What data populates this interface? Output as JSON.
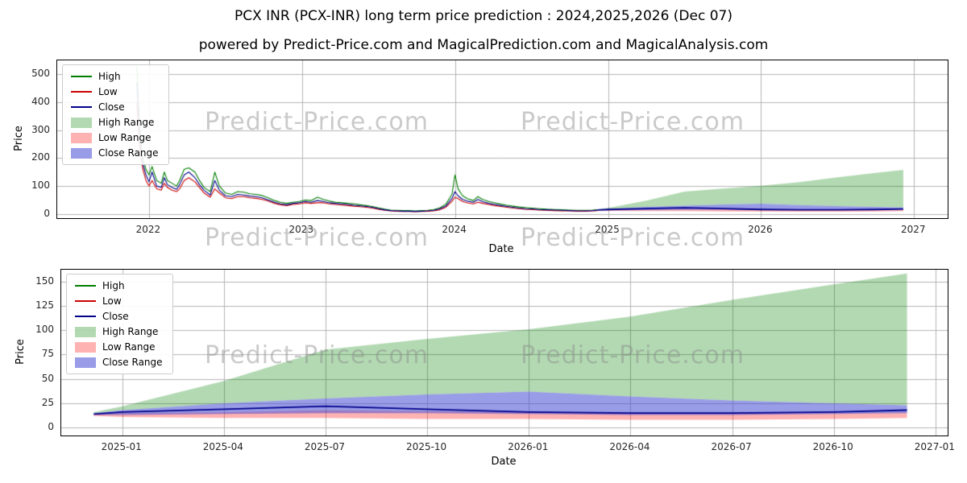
{
  "title": "PCX INR (PCX-INR) long term price prediction : 2024,2025,2026 (Dec 07)",
  "subtitle": "powered by Predict-Price.com and MagicalPrediction.com and MagicalAnalysis.com",
  "watermark": "Predict-Price.com",
  "colors": {
    "high": "#007f00",
    "low": "#cc0000",
    "close": "#00008b",
    "high_range": "rgba(0,128,0,0.30)",
    "low_range": "rgba(255,0,0,0.30)",
    "close_range": "rgba(70,75,210,0.55)",
    "grid": "#b4b4b4",
    "spine": "#000000"
  },
  "legend": [
    {
      "label": "High",
      "type": "line",
      "color": "high"
    },
    {
      "label": "Low",
      "type": "line",
      "color": "low"
    },
    {
      "label": "Close",
      "type": "line",
      "color": "close"
    },
    {
      "label": "High Range",
      "type": "patch",
      "color": "high_range"
    },
    {
      "label": "Low Range",
      "type": "patch",
      "color": "low_range"
    },
    {
      "label": "Close Range",
      "type": "patch",
      "color": "close_range"
    }
  ],
  "historical": {
    "x": [
      2021.92,
      2021.94,
      2021.96,
      2021.98,
      2022.0,
      2022.02,
      2022.05,
      2022.08,
      2022.1,
      2022.12,
      2022.15,
      2022.18,
      2022.2,
      2022.23,
      2022.26,
      2022.3,
      2022.33,
      2022.36,
      2022.4,
      2022.43,
      2022.46,
      2022.5,
      2022.54,
      2022.58,
      2022.62,
      2022.66,
      2022.7,
      2022.74,
      2022.78,
      2022.82,
      2022.86,
      2022.9,
      2022.94,
      2022.98,
      2023.02,
      2023.06,
      2023.1,
      2023.14,
      2023.18,
      2023.22,
      2023.26,
      2023.3,
      2023.34,
      2023.38,
      2023.42,
      2023.46,
      2023.5,
      2023.54,
      2023.58,
      2023.62,
      2023.66,
      2023.7,
      2023.74,
      2023.78,
      2023.82,
      2023.86,
      2023.9,
      2023.94,
      2023.98,
      2024.0,
      2024.02,
      2024.05,
      2024.08,
      2024.12,
      2024.15,
      2024.18,
      2024.22,
      2024.26,
      2024.3,
      2024.34,
      2024.38,
      2024.42,
      2024.46,
      2024.5,
      2024.55,
      2024.6,
      2024.65,
      2024.7,
      2024.75,
      2024.8,
      2024.85,
      2024.9,
      2024.93
    ],
    "high": [
      530,
      300,
      200,
      160,
      140,
      170,
      120,
      110,
      150,
      120,
      110,
      100,
      120,
      160,
      165,
      150,
      120,
      95,
      80,
      150,
      100,
      75,
      70,
      80,
      78,
      72,
      70,
      66,
      58,
      48,
      42,
      38,
      42,
      44,
      50,
      48,
      60,
      52,
      46,
      42,
      40,
      38,
      36,
      33,
      30,
      27,
      22,
      17,
      14,
      13,
      12,
      12,
      11,
      12,
      13,
      15,
      22,
      35,
      70,
      140,
      90,
      65,
      55,
      48,
      62,
      52,
      45,
      40,
      35,
      31,
      28,
      25,
      23,
      21,
      19,
      17,
      16,
      15,
      14,
      13,
      13,
      14,
      15
    ],
    "low": [
      400,
      230,
      160,
      120,
      100,
      120,
      90,
      85,
      110,
      95,
      85,
      80,
      90,
      120,
      130,
      115,
      95,
      75,
      60,
      90,
      75,
      58,
      55,
      62,
      62,
      58,
      56,
      52,
      46,
      38,
      33,
      30,
      34,
      36,
      40,
      38,
      40,
      40,
      36,
      34,
      32,
      30,
      28,
      26,
      24,
      21,
      17,
      13,
      11,
      10,
      9,
      9,
      8,
      9,
      10,
      11,
      15,
      24,
      45,
      60,
      55,
      45,
      40,
      36,
      42,
      38,
      34,
      30,
      27,
      24,
      21,
      19,
      17,
      16,
      14,
      13,
      12,
      11,
      11,
      10,
      10,
      11,
      12
    ],
    "close": [
      470,
      260,
      180,
      140,
      115,
      150,
      100,
      95,
      130,
      105,
      95,
      88,
      105,
      140,
      150,
      130,
      105,
      85,
      68,
      120,
      85,
      65,
      62,
      70,
      68,
      64,
      62,
      58,
      50,
      42,
      36,
      33,
      38,
      40,
      45,
      42,
      48,
      45,
      40,
      38,
      36,
      34,
      31,
      29,
      27,
      24,
      19,
      15,
      12,
      11,
      10,
      10,
      9,
      10,
      11,
      13,
      18,
      28,
      55,
      80,
      65,
      52,
      46,
      42,
      52,
      44,
      38,
      34,
      30,
      27,
      24,
      21,
      19,
      18,
      16,
      15,
      14,
      13,
      12,
      11,
      11,
      12,
      14
    ]
  },
  "forecast": {
    "x": [
      2024.93,
      2025.0,
      2025.25,
      2025.5,
      2025.75,
      2026.0,
      2026.25,
      2026.5,
      2026.75,
      2026.93
    ],
    "high_upper": [
      16,
      22,
      48,
      80,
      91,
      101,
      114,
      131,
      147,
      158
    ],
    "close_upper": [
      15,
      18,
      25,
      30,
      34,
      37,
      32,
      28,
      25,
      23
    ],
    "close_lower": [
      13,
      13,
      14,
      15,
      15,
      14,
      13,
      13,
      14,
      15
    ],
    "low_upper": [
      14,
      15,
      16,
      18,
      17,
      16,
      15,
      15,
      15,
      16
    ],
    "low_lower": [
      12,
      11,
      10,
      10,
      9,
      9,
      8,
      8,
      9,
      10
    ],
    "close": [
      14,
      16,
      19,
      22,
      19,
      16,
      15,
      15,
      16,
      18
    ]
  },
  "chart_data": [
    {
      "type": "line",
      "title": "",
      "xlabel": "Date",
      "ylabel": "Price",
      "xlim": [
        2021.4,
        2027.22
      ],
      "ylim": [
        -15,
        550
      ],
      "grid": true,
      "legend_position": "upper left",
      "show": [
        "historical",
        "forecast"
      ],
      "xticks": [
        {
          "v": 2022,
          "label": "2022"
        },
        {
          "v": 2023,
          "label": "2023"
        },
        {
          "v": 2024,
          "label": "2024"
        },
        {
          "v": 2025,
          "label": "2025"
        },
        {
          "v": 2026,
          "label": "2026"
        },
        {
          "v": 2027,
          "label": "2027"
        }
      ],
      "yticks": [
        {
          "v": 0,
          "label": "0"
        },
        {
          "v": 100,
          "label": "100"
        },
        {
          "v": 200,
          "label": "200"
        },
        {
          "v": 300,
          "label": "300"
        },
        {
          "v": 400,
          "label": "400"
        },
        {
          "v": 500,
          "label": "500"
        }
      ]
    },
    {
      "type": "line",
      "title": "",
      "xlabel": "Date",
      "ylabel": "Price",
      "xlim": [
        2024.85,
        2027.03
      ],
      "ylim": [
        -8,
        162
      ],
      "grid": true,
      "legend_position": "upper left",
      "show": [
        "forecast"
      ],
      "xticks": [
        {
          "v": 2025.0,
          "label": "2025-01"
        },
        {
          "v": 2025.25,
          "label": "2025-04"
        },
        {
          "v": 2025.5,
          "label": "2025-07"
        },
        {
          "v": 2025.75,
          "label": "2025-10"
        },
        {
          "v": 2026.0,
          "label": "2026-01"
        },
        {
          "v": 2026.25,
          "label": "2026-04"
        },
        {
          "v": 2026.5,
          "label": "2026-07"
        },
        {
          "v": 2026.75,
          "label": "2026-10"
        },
        {
          "v": 2027.0,
          "label": "2027-01"
        }
      ],
      "yticks": [
        {
          "v": 0,
          "label": "0"
        },
        {
          "v": 25,
          "label": "25"
        },
        {
          "v": 50,
          "label": "50"
        },
        {
          "v": 75,
          "label": "75"
        },
        {
          "v": 100,
          "label": "100"
        },
        {
          "v": 125,
          "label": "125"
        },
        {
          "v": 150,
          "label": "150"
        }
      ]
    }
  ]
}
